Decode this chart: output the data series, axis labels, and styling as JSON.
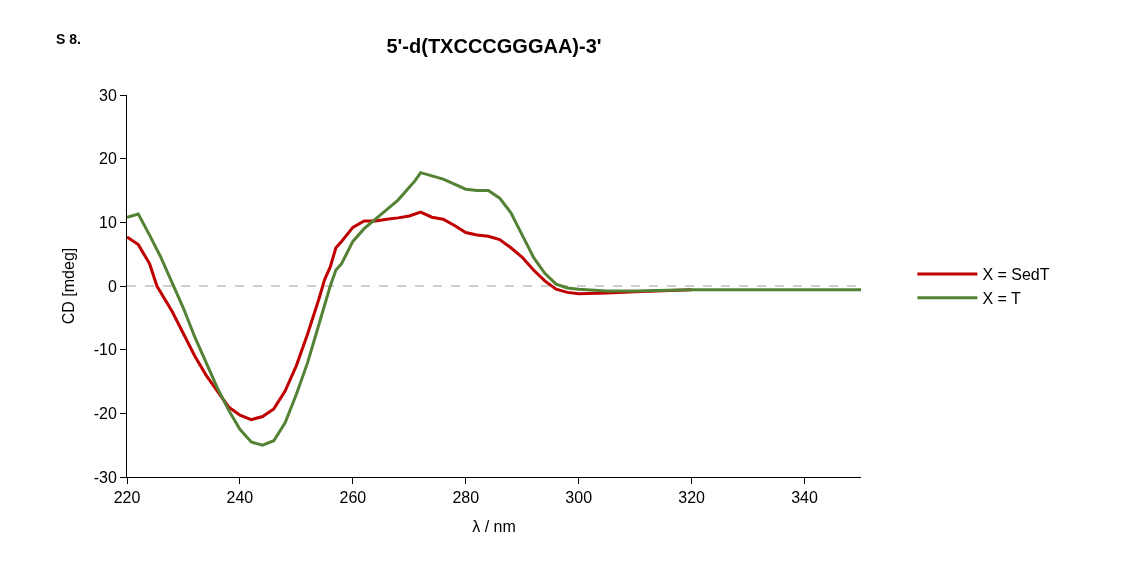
{
  "chart_data": {
    "type": "line",
    "title": "5'-d(TXCCCGGGAA)-3'",
    "xlabel": "λ / nm",
    "ylabel": "CD [mdeg]",
    "annotations": [
      "S 8."
    ],
    "xlim": [
      220,
      350
    ],
    "xticks": [
      220,
      240,
      260,
      280,
      300,
      320,
      340
    ],
    "ylim": [
      -30,
      30
    ],
    "yticks": [
      -30,
      -20,
      -10,
      0,
      10,
      20,
      30
    ],
    "grid": false,
    "legend": "right",
    "marker": "none",
    "line_style": "solid",
    "ref_lines": [
      {
        "axis": "y",
        "value": 0,
        "color": "#bfbfbf",
        "line_style": "dashed"
      }
    ],
    "series": [
      {
        "name": "X = SedT",
        "color": "#c00000",
        "x": [
          220,
          222,
          224,
          225.3,
          228,
          230,
          232,
          234,
          236,
          238,
          240,
          242,
          244,
          246,
          248,
          250,
          252,
          254,
          255,
          256,
          257,
          258,
          260,
          262,
          264,
          266,
          268,
          270,
          272,
          274,
          276,
          278,
          280,
          282,
          284,
          286,
          288,
          290,
          292,
          294,
          296,
          298,
          300,
          305,
          310,
          320
        ],
        "values": [
          7.7,
          6.5,
          3.5,
          0,
          -4,
          -7.5,
          -11,
          -14,
          -16.5,
          -19,
          -20.3,
          -21,
          -20.5,
          -19.3,
          -16.5,
          -12.5,
          -7.5,
          -2,
          1,
          3,
          6,
          7,
          9.2,
          10.2,
          10.2,
          10.5,
          10.7,
          11,
          11.6,
          10.8,
          10.5,
          9.5,
          8.4,
          8,
          7.8,
          7.3,
          6,
          4.5,
          2.5,
          0.8,
          -0.5,
          -1,
          -1.2,
          -1.1,
          -0.9,
          -0.6
        ]
      },
      {
        "name": "X = T",
        "color": "#548235",
        "x": [
          220,
          222,
          224,
          226,
          228,
          230,
          232,
          234,
          236,
          238,
          240,
          242,
          244,
          246,
          248,
          250,
          252,
          254,
          256,
          257,
          258,
          260,
          262,
          264,
          266,
          268,
          270,
          271,
          272,
          274,
          276,
          278,
          280,
          282,
          284,
          286,
          288,
          290,
          292,
          294,
          296,
          298,
          300,
          305,
          310,
          320,
          330,
          340,
          350
        ],
        "values": [
          10.8,
          11.3,
          8,
          4.5,
          0.5,
          -3.5,
          -8,
          -12,
          -16,
          -19.5,
          -22.5,
          -24.5,
          -25,
          -24.3,
          -21.5,
          -17,
          -12,
          -6,
          0,
          2.5,
          3.5,
          7,
          9,
          10.5,
          12,
          13.5,
          15.5,
          16.5,
          17.8,
          17.3,
          16.8,
          16,
          15.2,
          15,
          15,
          13.8,
          11.5,
          8,
          4.5,
          2,
          0.3,
          -0.3,
          -0.5,
          -0.8,
          -0.8,
          -0.6,
          -0.6,
          -0.6,
          -0.6
        ]
      }
    ]
  }
}
